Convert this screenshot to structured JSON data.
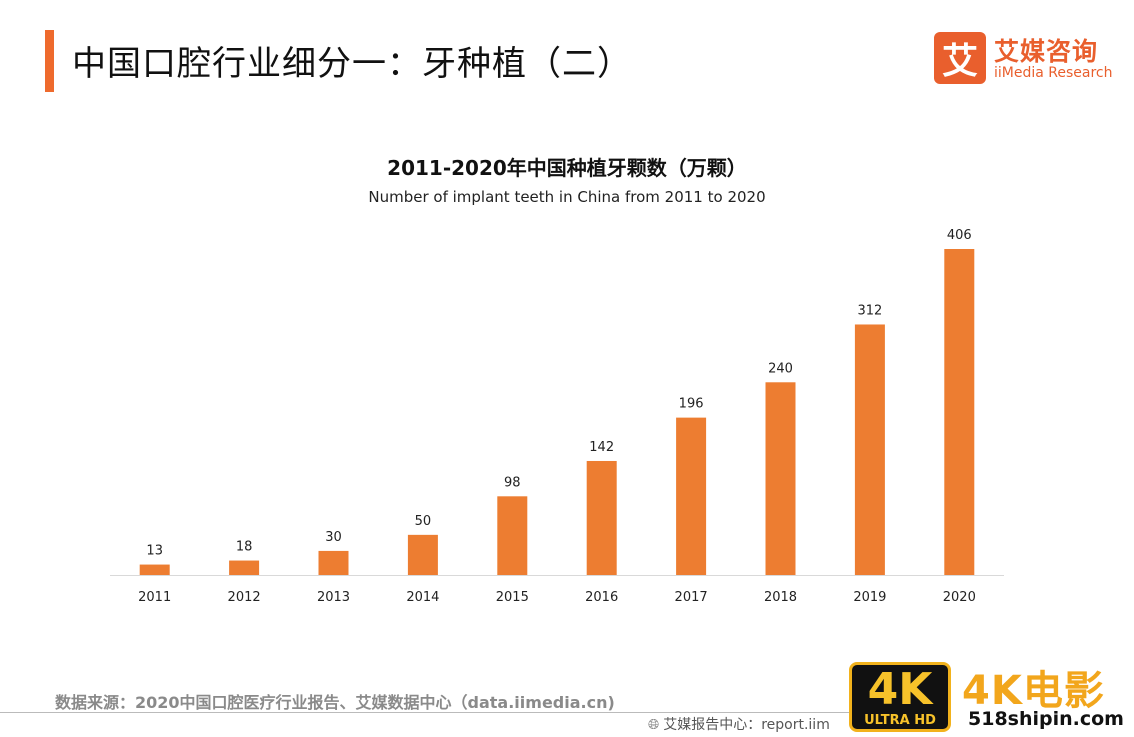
{
  "header": {
    "title": "中国口腔行业细分一：牙种植（二）"
  },
  "logo": {
    "mark": "艾",
    "name_cn": "艾媒咨询",
    "name_en": "iiMedia Research"
  },
  "colors": {
    "accent": "#ee6a2d",
    "bar": "#ed7d31"
  },
  "chart_data": {
    "type": "bar",
    "title": "2011-2020年中国种植牙颗数（万颗）",
    "subtitle": "Number of implant teeth in China from 2011 to 2020",
    "categories": [
      "2011",
      "2012",
      "2013",
      "2014",
      "2015",
      "2016",
      "2017",
      "2018",
      "2019",
      "2020"
    ],
    "values": [
      13,
      18,
      30,
      50,
      98,
      142,
      196,
      240,
      312,
      406
    ],
    "xlabel": "",
    "ylabel": "",
    "ylim": [
      0,
      406
    ],
    "grid": false,
    "legend": "none"
  },
  "footer": {
    "source": "数据来源：2020中国口腔医疗行业报告、艾媒数据中心（data.iimedia.cn)",
    "center": "艾媒报告中心：report.iim"
  },
  "watermark": {
    "badge_big": "4K",
    "badge_small": "ULTRA HD",
    "text": "4K电影",
    "site": "518shipin.com"
  }
}
